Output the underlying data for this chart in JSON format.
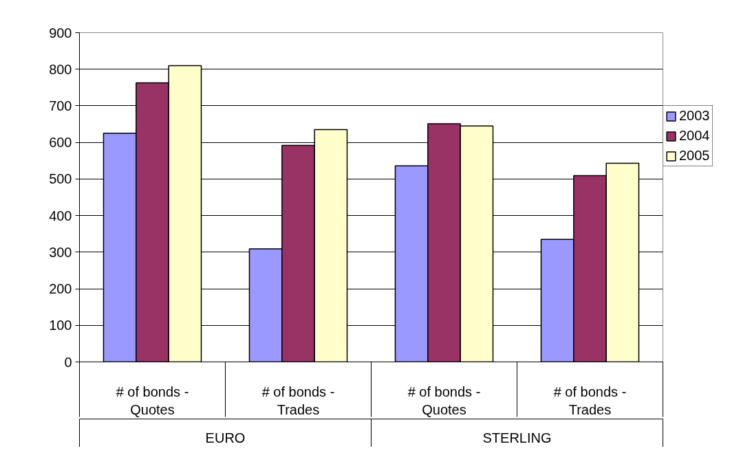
{
  "chart_data": {
    "type": "bar",
    "categories": [
      "# of bonds - Quotes",
      "# of bonds - Trades",
      "# of bonds - Quotes",
      "# of bonds - Trades"
    ],
    "annotations": [
      "EURO",
      "STERLING"
    ],
    "series": [
      {
        "name": "2003",
        "color": "#9999ff",
        "values": [
          625,
          309,
          536,
          335
        ]
      },
      {
        "name": "2004",
        "color": "#993366",
        "values": [
          763,
          592,
          651,
          509
        ]
      },
      {
        "name": "2005",
        "color": "#ffffcc",
        "values": [
          810,
          635,
          645,
          543
        ]
      }
    ],
    "ylim": [
      0,
      900
    ],
    "yticks": [
      0,
      100,
      200,
      300,
      400,
      500,
      600,
      700,
      800,
      900
    ],
    "grid": "y",
    "legend": "right"
  }
}
